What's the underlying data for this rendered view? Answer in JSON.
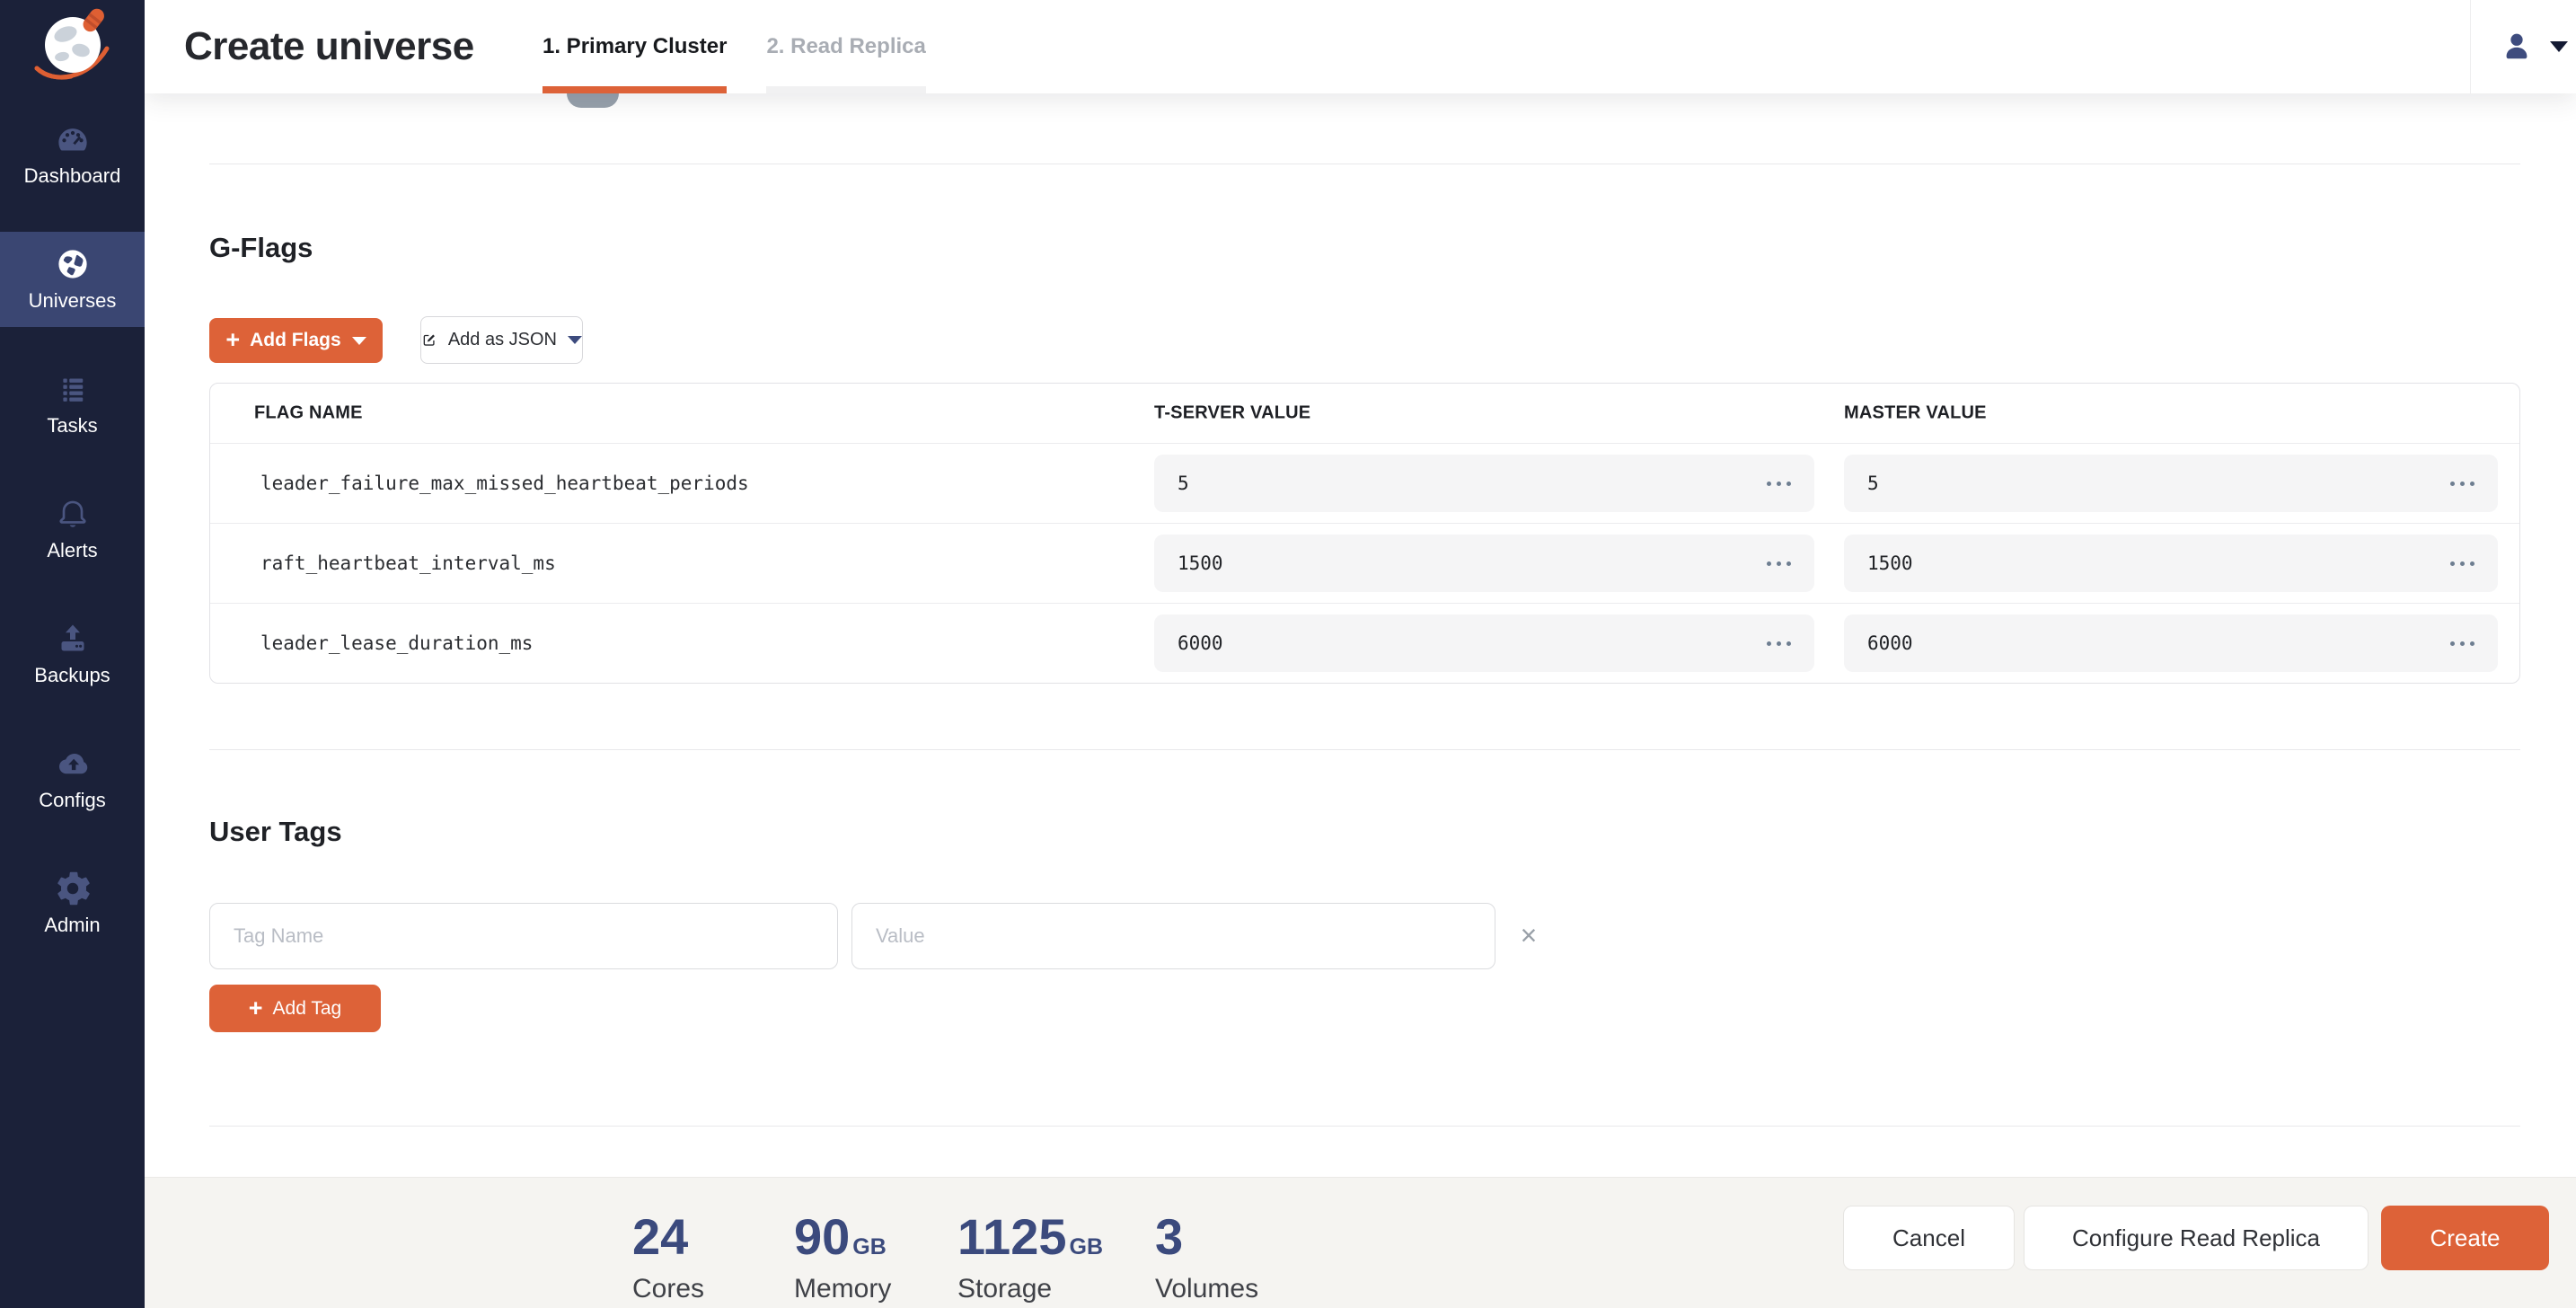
{
  "header": {
    "title": "Create universe",
    "tabs": [
      {
        "id": "primary-cluster",
        "label": "1. Primary Cluster",
        "active": true
      },
      {
        "id": "read-replica",
        "label": "2. Read Replica",
        "active": false
      }
    ]
  },
  "sidebar": {
    "items": [
      {
        "id": "dashboard",
        "label": "Dashboard",
        "icon": "dashboard-gauge-icon",
        "active": false
      },
      {
        "id": "universes",
        "label": "Universes",
        "icon": "universe-globe-icon",
        "active": true
      },
      {
        "id": "tasks",
        "label": "Tasks",
        "icon": "tasks-list-icon",
        "active": false
      },
      {
        "id": "alerts",
        "label": "Alerts",
        "icon": "alerts-bell-icon",
        "active": false
      },
      {
        "id": "backups",
        "label": "Backups",
        "icon": "backups-upload-icon",
        "active": false
      },
      {
        "id": "configs",
        "label": "Configs",
        "icon": "configs-cloud-upload-icon",
        "active": false
      },
      {
        "id": "admin",
        "label": "Admin",
        "icon": "admin-gear-icon",
        "active": false
      }
    ]
  },
  "gflags": {
    "section_title": "G-Flags",
    "add_flags_label": "Add Flags",
    "add_as_json_label": "Add as JSON",
    "table": {
      "columns": [
        "FLAG NAME",
        "T-SERVER VALUE",
        "MASTER VALUE"
      ],
      "rows": [
        {
          "flag_name": "leader_failure_max_missed_heartbeat_periods",
          "tserver_value": "5",
          "master_value": "5"
        },
        {
          "flag_name": "raft_heartbeat_interval_ms",
          "tserver_value": "1500",
          "master_value": "1500"
        },
        {
          "flag_name": "leader_lease_duration_ms",
          "tserver_value": "6000",
          "master_value": "6000"
        }
      ]
    }
  },
  "user_tags": {
    "section_title": "User Tags",
    "tag_name_placeholder": "Tag Name",
    "value_placeholder": "Value",
    "add_tag_label": "Add Tag"
  },
  "footer": {
    "stats": [
      {
        "value": "24",
        "unit": "",
        "label": "Cores"
      },
      {
        "value": "90",
        "unit": "GB",
        "label": "Memory"
      },
      {
        "value": "1125",
        "unit": "GB",
        "label": "Storage"
      },
      {
        "value": "3",
        "unit": "",
        "label": "Volumes"
      }
    ],
    "cancel_label": "Cancel",
    "configure_read_replica_label": "Configure Read Replica",
    "create_label": "Create"
  },
  "colors": {
    "accent": "#DD6238",
    "sidebar_bg": "#1B2139",
    "sidebar_active_bg": "#3A4672",
    "stat_number": "#3B4A7D",
    "tab_underline": "#DD6238",
    "value_cell_bg": "#F5F5F6"
  }
}
